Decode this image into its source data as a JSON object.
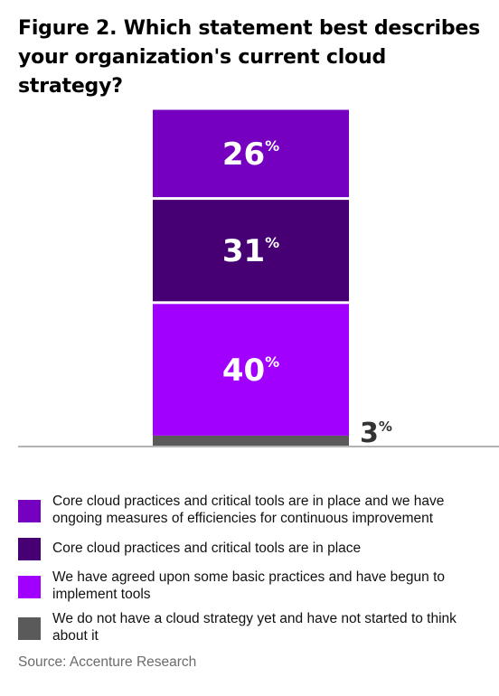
{
  "title": "Figure 2. Which statement best describes your organization's current cloud strategy?",
  "chart_data": {
    "type": "bar",
    "stacked": true,
    "series": [
      {
        "name": "We do not have a cloud strategy yet and have not started to think about it",
        "value": 3,
        "label": "3",
        "color": "#5a5a5a"
      },
      {
        "name": "We have agreed upon some basic practices and have begun to implement tools",
        "value": 40,
        "label": "40",
        "color": "#a100ff"
      },
      {
        "name": "Core cloud practices and critical tools are in place",
        "value": 31,
        "label": "31",
        "color": "#460073"
      },
      {
        "name": "Core cloud practices and critical tools are in place and we have ongoing measures of efficiencies for continuous improvement",
        "value": 26,
        "label": "26",
        "color": "#7500c0"
      }
    ],
    "unit": "%",
    "axis_color": "#b3b3b3"
  },
  "legend": [
    {
      "label": "Core cloud practices and critical tools are in place and we have ongoing measures of efficiencies for continuous improvement",
      "color": "#7500c0"
    },
    {
      "label": "Core cloud practices and critical tools are in place",
      "color": "#460073"
    },
    {
      "label": "We have agreed upon some basic practices and have begun to implement tools",
      "color": "#a100ff"
    },
    {
      "label": "We do not have a cloud strategy yet and have not started to think about it",
      "color": "#5a5a5a"
    }
  ],
  "source": "Source: Accenture Research"
}
